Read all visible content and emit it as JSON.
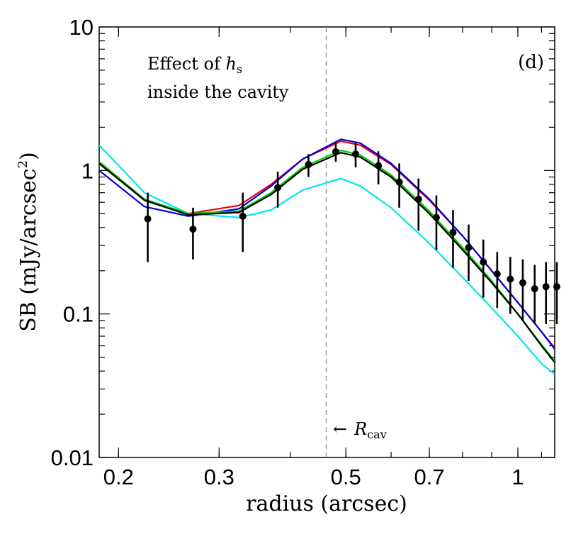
{
  "chart_data": {
    "type": "line",
    "panel_label": "(d)",
    "xlabel": "radius (arcsec)",
    "ylabel": "SB (mJy/arcsec",
    "ylabel_sup": "2",
    "ylabel_close": ")",
    "xscale": "log",
    "yscale": "log",
    "xlim": [
      0.185,
      1.16
    ],
    "ylim": [
      0.01,
      10
    ],
    "x_ticks": [
      {
        "value": 0.2,
        "label": "0.2"
      },
      {
        "value": 0.3,
        "label": "0.3"
      },
      {
        "value": 0.5,
        "label": "0.5"
      },
      {
        "value": 0.7,
        "label": "0.7"
      },
      {
        "value": 1.0,
        "label": "1"
      }
    ],
    "y_ticks": [
      {
        "value": 0.01,
        "label": "0.01"
      },
      {
        "value": 0.1,
        "label": "0.1"
      },
      {
        "value": 1,
        "label": "1"
      },
      {
        "value": 10,
        "label": "10"
      }
    ],
    "annotation": {
      "line1_prefix": "Effect of ",
      "symbol": "h",
      "subscript": "s",
      "line2": "inside the cavity"
    },
    "vline": {
      "x": 0.462,
      "style": "dashed",
      "color": "#999999",
      "label": "R",
      "label_sub": "cav",
      "arrow": "←"
    },
    "series": [
      {
        "name": "cyan",
        "color": "#00e5ee",
        "x": [
          0.185,
          0.222,
          0.265,
          0.325,
          0.37,
          0.42,
          0.49,
          0.53,
          0.6,
          0.7,
          0.8,
          0.9,
          1.0,
          1.1,
          1.16
        ],
        "y": [
          1.5,
          0.7,
          0.5,
          0.47,
          0.53,
          0.73,
          0.88,
          0.78,
          0.55,
          0.31,
          0.18,
          0.11,
          0.07,
          0.045,
          0.038
        ]
      },
      {
        "name": "red",
        "color": "#ee0000",
        "x": [
          0.185,
          0.222,
          0.265,
          0.325,
          0.37,
          0.42,
          0.49,
          0.53,
          0.6,
          0.7,
          0.8,
          0.9,
          1.0,
          1.1,
          1.16
        ],
        "y": [
          1.12,
          0.62,
          0.5,
          0.57,
          0.8,
          1.2,
          1.6,
          1.5,
          1.1,
          0.62,
          0.35,
          0.2,
          0.12,
          0.075,
          0.058
        ]
      },
      {
        "name": "blue",
        "color": "#0000dd",
        "x": [
          0.185,
          0.222,
          0.265,
          0.325,
          0.37,
          0.42,
          0.49,
          0.53,
          0.6,
          0.7,
          0.8,
          0.9,
          1.0,
          1.1,
          1.16
        ],
        "y": [
          1.0,
          0.56,
          0.48,
          0.54,
          0.78,
          1.2,
          1.65,
          1.55,
          1.12,
          0.63,
          0.35,
          0.2,
          0.12,
          0.075,
          0.057
        ]
      },
      {
        "name": "green",
        "color": "#00cc00",
        "x": [
          0.185,
          0.222,
          0.265,
          0.325,
          0.37,
          0.42,
          0.49,
          0.53,
          0.6,
          0.7,
          0.8,
          0.9,
          1.0,
          1.1,
          1.16
        ],
        "y": [
          1.15,
          0.63,
          0.5,
          0.52,
          0.7,
          1.05,
          1.38,
          1.28,
          0.93,
          0.52,
          0.29,
          0.17,
          0.1,
          0.061,
          0.047
        ]
      },
      {
        "name": "black",
        "color": "#000000",
        "x": [
          0.185,
          0.222,
          0.265,
          0.325,
          0.37,
          0.42,
          0.49,
          0.53,
          0.6,
          0.7,
          0.8,
          0.9,
          1.0,
          1.1,
          1.16
        ],
        "y": [
          1.12,
          0.62,
          0.49,
          0.51,
          0.68,
          1.02,
          1.33,
          1.24,
          0.9,
          0.5,
          0.28,
          0.165,
          0.1,
          0.06,
          0.046
        ]
      }
    ],
    "observations": {
      "name": "data",
      "color": "#000000",
      "x": [
        0.225,
        0.27,
        0.33,
        0.38,
        0.43,
        0.48,
        0.52,
        0.57,
        0.62,
        0.67,
        0.72,
        0.77,
        0.82,
        0.87,
        0.92,
        0.97,
        1.02,
        1.07,
        1.12,
        1.17
      ],
      "y": [
        0.46,
        0.39,
        0.48,
        0.76,
        1.1,
        1.35,
        1.3,
        1.08,
        0.83,
        0.63,
        0.47,
        0.37,
        0.29,
        0.23,
        0.19,
        0.175,
        0.165,
        0.15,
        0.155,
        0.155
      ],
      "err_low": [
        0.23,
        0.24,
        0.27,
        0.55,
        0.9,
        1.15,
        1.05,
        0.8,
        0.55,
        0.38,
        0.28,
        0.21,
        0.17,
        0.13,
        0.11,
        0.1,
        0.09,
        0.085,
        0.085,
        0.085
      ],
      "err_high": [
        0.7,
        0.55,
        0.7,
        0.98,
        1.3,
        1.55,
        1.55,
        1.36,
        1.12,
        0.88,
        0.67,
        0.53,
        0.42,
        0.33,
        0.27,
        0.25,
        0.24,
        0.22,
        0.23,
        0.23
      ]
    }
  }
}
